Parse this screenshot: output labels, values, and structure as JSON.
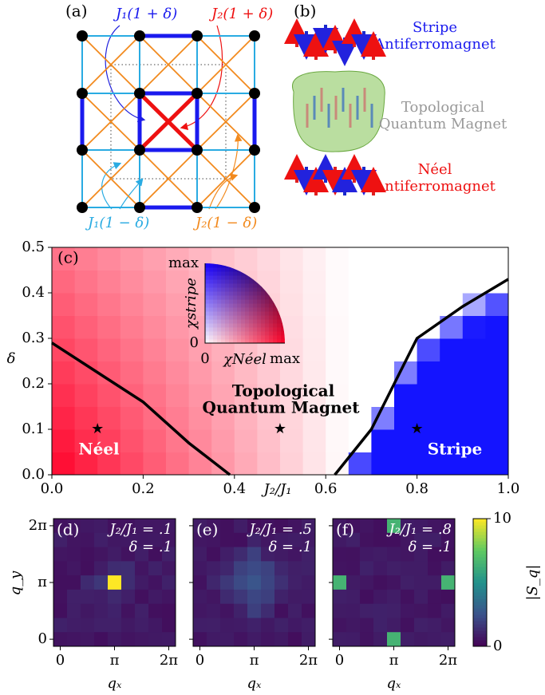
{
  "panel_a": {
    "label": "(a)",
    "couplings": [
      "J₁(1 + δ)",
      "J₂(1 + δ)",
      "J₁(1 − δ)",
      "J₂(1 − δ)"
    ]
  },
  "panel_b": {
    "label": "(b)",
    "phases": [
      [
        "Stripe",
        "Antiferromagnet"
      ],
      [
        "Topological",
        "Quantum Magnet"
      ],
      [
        "Néel",
        "Antiferromagnet"
      ]
    ]
  },
  "phase_diagram": {
    "label": "(c)",
    "type": "line",
    "xlabel": "J₂/J₁",
    "ylabel": "δ",
    "xlim": [
      0,
      1
    ],
    "ylim": [
      0,
      0.5
    ],
    "xticks": [
      {
        "value": 0,
        "label": "0.0"
      },
      0.2,
      0.4,
      0.6,
      0.8,
      {
        "value": 1,
        "label": "1.0"
      }
    ],
    "yticks": [
      {
        "value": 0,
        "label": "0.0"
      },
      0.1,
      0.2,
      0.3,
      0.4,
      0.5
    ],
    "boundaries": [
      {
        "color": "#000000",
        "x": [
          0,
          0.2,
          0.3,
          0.39
        ],
        "y": [
          0.29,
          0.16,
          0.07,
          0
        ]
      },
      {
        "color": "#000000",
        "x": [
          0.62,
          0.7,
          0.75,
          0.8,
          0.9,
          1.0
        ],
        "y": [
          0,
          0.1,
          0.2,
          0.3,
          0.37,
          0.43
        ]
      }
    ],
    "markers": {
      "x": [
        0.1,
        0.5,
        0.8
      ],
      "y": [
        0.1,
        0.1,
        0.1
      ]
    },
    "regions": {
      "neel": "Néel",
      "topological": [
        "Topological",
        "Quantum Magnet"
      ],
      "stripe": "Stripe"
    },
    "inset": {
      "y_ticks": [
        "max",
        "0"
      ],
      "x_ticks": [
        "0",
        "max"
      ],
      "xlabel": "χNéel",
      "ylabel": "χstripe"
    }
  },
  "structure_factors": {
    "xlabel": "qₓ",
    "ylabel": "q_y",
    "lim": [
      -0.3927,
      6.6759
    ],
    "ticks": [
      0,
      {
        "value": 3.14159,
        "label": "π"
      },
      {
        "value": 6.28319,
        "label": "2π"
      }
    ],
    "panels": [
      {
        "label": "(d)",
        "params": [
          "J₂/J₁ = .1",
          "δ = .1"
        ],
        "peaks": [
          {
            "qx": 3.14159,
            "qy": 3.14159,
            "value": 10
          }
        ]
      },
      {
        "label": "(e)",
        "params": [
          "J₂/J₁ = .5",
          "δ = .1"
        ],
        "peaks": []
      },
      {
        "label": "(f)",
        "params": [
          "J₂/J₁ = .8",
          "δ = .1"
        ],
        "peaks": [
          {
            "qx": 0,
            "qy": 3.14159,
            "value": 6.5
          },
          {
            "qx": 6.28319,
            "qy": 3.14159,
            "value": 6.5
          },
          {
            "qx": 3.14159,
            "qy": 0,
            "value": 6.5
          },
          {
            "qx": 3.14159,
            "qy": 6.28319,
            "value": 6.5
          }
        ]
      }
    ],
    "colorbar": {
      "label": "|S_q|",
      "lim": [
        0,
        10
      ],
      "ticks": [
        0,
        10
      ]
    }
  }
}
